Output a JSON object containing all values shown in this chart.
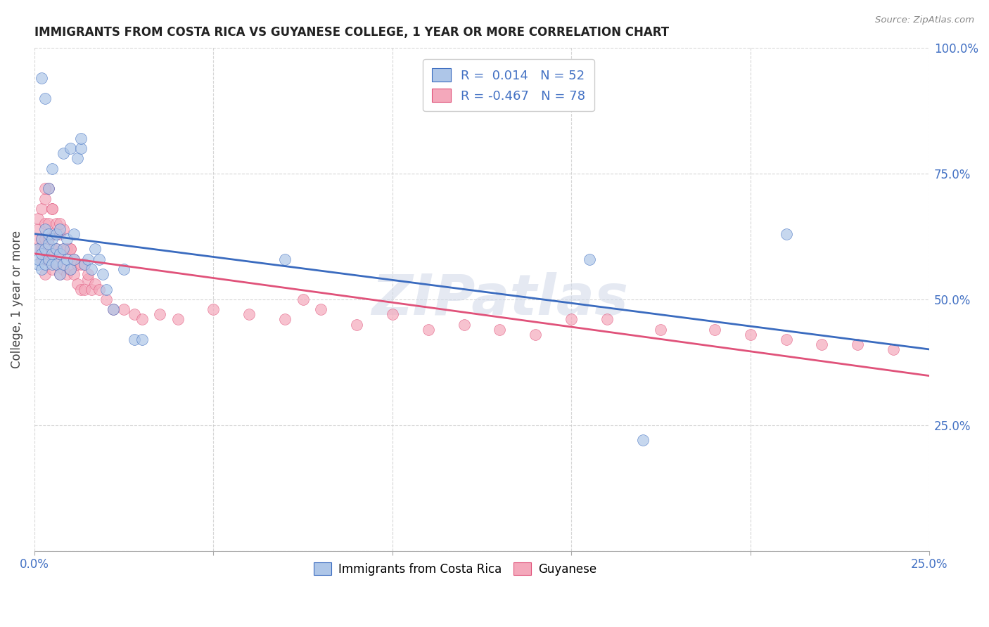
{
  "title": "IMMIGRANTS FROM COSTA RICA VS GUYANESE COLLEGE, 1 YEAR OR MORE CORRELATION CHART",
  "source": "Source: ZipAtlas.com",
  "ylabel": "College, 1 year or more",
  "legend_label1": "Immigrants from Costa Rica",
  "legend_label2": "Guyanese",
  "r1": 0.014,
  "n1": 52,
  "r2": -0.467,
  "n2": 78,
  "blue_color": "#aec6e8",
  "pink_color": "#f4a8bb",
  "blue_line_color": "#3a6bbf",
  "pink_line_color": "#e0527a",
  "axis_label_color": "#4472c4",
  "watermark": "ZIPatlas",
  "xlim": [
    0.0,
    0.25
  ],
  "ylim": [
    0.0,
    1.0
  ],
  "blue_x": [
    0.001,
    0.001,
    0.001,
    0.002,
    0.002,
    0.002,
    0.003,
    0.003,
    0.003,
    0.004,
    0.004,
    0.004,
    0.004,
    0.005,
    0.005,
    0.005,
    0.005,
    0.006,
    0.006,
    0.006,
    0.007,
    0.007,
    0.007,
    0.008,
    0.008,
    0.008,
    0.009,
    0.009,
    0.01,
    0.01,
    0.011,
    0.011,
    0.012,
    0.013,
    0.013,
    0.014,
    0.015,
    0.016,
    0.017,
    0.018,
    0.019,
    0.02,
    0.022,
    0.025,
    0.028,
    0.03,
    0.07,
    0.155,
    0.17,
    0.002,
    0.003,
    0.21
  ],
  "blue_y": [
    0.57,
    0.58,
    0.6,
    0.56,
    0.59,
    0.62,
    0.57,
    0.6,
    0.64,
    0.58,
    0.61,
    0.63,
    0.72,
    0.57,
    0.59,
    0.62,
    0.76,
    0.57,
    0.6,
    0.63,
    0.55,
    0.59,
    0.64,
    0.57,
    0.6,
    0.79,
    0.58,
    0.62,
    0.56,
    0.8,
    0.58,
    0.63,
    0.78,
    0.8,
    0.82,
    0.57,
    0.58,
    0.56,
    0.6,
    0.58,
    0.55,
    0.52,
    0.48,
    0.56,
    0.42,
    0.42,
    0.58,
    0.58,
    0.22,
    0.94,
    0.9,
    0.63
  ],
  "pink_x": [
    0.001,
    0.001,
    0.001,
    0.001,
    0.002,
    0.002,
    0.002,
    0.002,
    0.003,
    0.003,
    0.003,
    0.003,
    0.003,
    0.004,
    0.004,
    0.004,
    0.004,
    0.005,
    0.005,
    0.005,
    0.005,
    0.006,
    0.006,
    0.006,
    0.007,
    0.007,
    0.007,
    0.008,
    0.008,
    0.008,
    0.009,
    0.009,
    0.01,
    0.01,
    0.011,
    0.011,
    0.012,
    0.012,
    0.013,
    0.013,
    0.014,
    0.014,
    0.015,
    0.016,
    0.017,
    0.018,
    0.02,
    0.022,
    0.025,
    0.028,
    0.03,
    0.035,
    0.04,
    0.05,
    0.06,
    0.07,
    0.075,
    0.08,
    0.09,
    0.1,
    0.11,
    0.12,
    0.13,
    0.14,
    0.15,
    0.16,
    0.175,
    0.19,
    0.2,
    0.21,
    0.22,
    0.23,
    0.24,
    0.003,
    0.005,
    0.007,
    0.01,
    0.015
  ],
  "pink_y": [
    0.6,
    0.62,
    0.64,
    0.66,
    0.58,
    0.6,
    0.62,
    0.68,
    0.55,
    0.58,
    0.62,
    0.65,
    0.7,
    0.58,
    0.62,
    0.65,
    0.72,
    0.56,
    0.6,
    0.63,
    0.68,
    0.57,
    0.6,
    0.65,
    0.55,
    0.59,
    0.63,
    0.56,
    0.6,
    0.64,
    0.55,
    0.6,
    0.56,
    0.6,
    0.55,
    0.58,
    0.53,
    0.57,
    0.52,
    0.57,
    0.52,
    0.57,
    0.54,
    0.52,
    0.53,
    0.52,
    0.5,
    0.48,
    0.48,
    0.47,
    0.46,
    0.47,
    0.46,
    0.48,
    0.47,
    0.46,
    0.5,
    0.48,
    0.45,
    0.47,
    0.44,
    0.45,
    0.44,
    0.43,
    0.46,
    0.46,
    0.44,
    0.44,
    0.43,
    0.42,
    0.41,
    0.41,
    0.4,
    0.72,
    0.68,
    0.65,
    0.6,
    0.55
  ]
}
